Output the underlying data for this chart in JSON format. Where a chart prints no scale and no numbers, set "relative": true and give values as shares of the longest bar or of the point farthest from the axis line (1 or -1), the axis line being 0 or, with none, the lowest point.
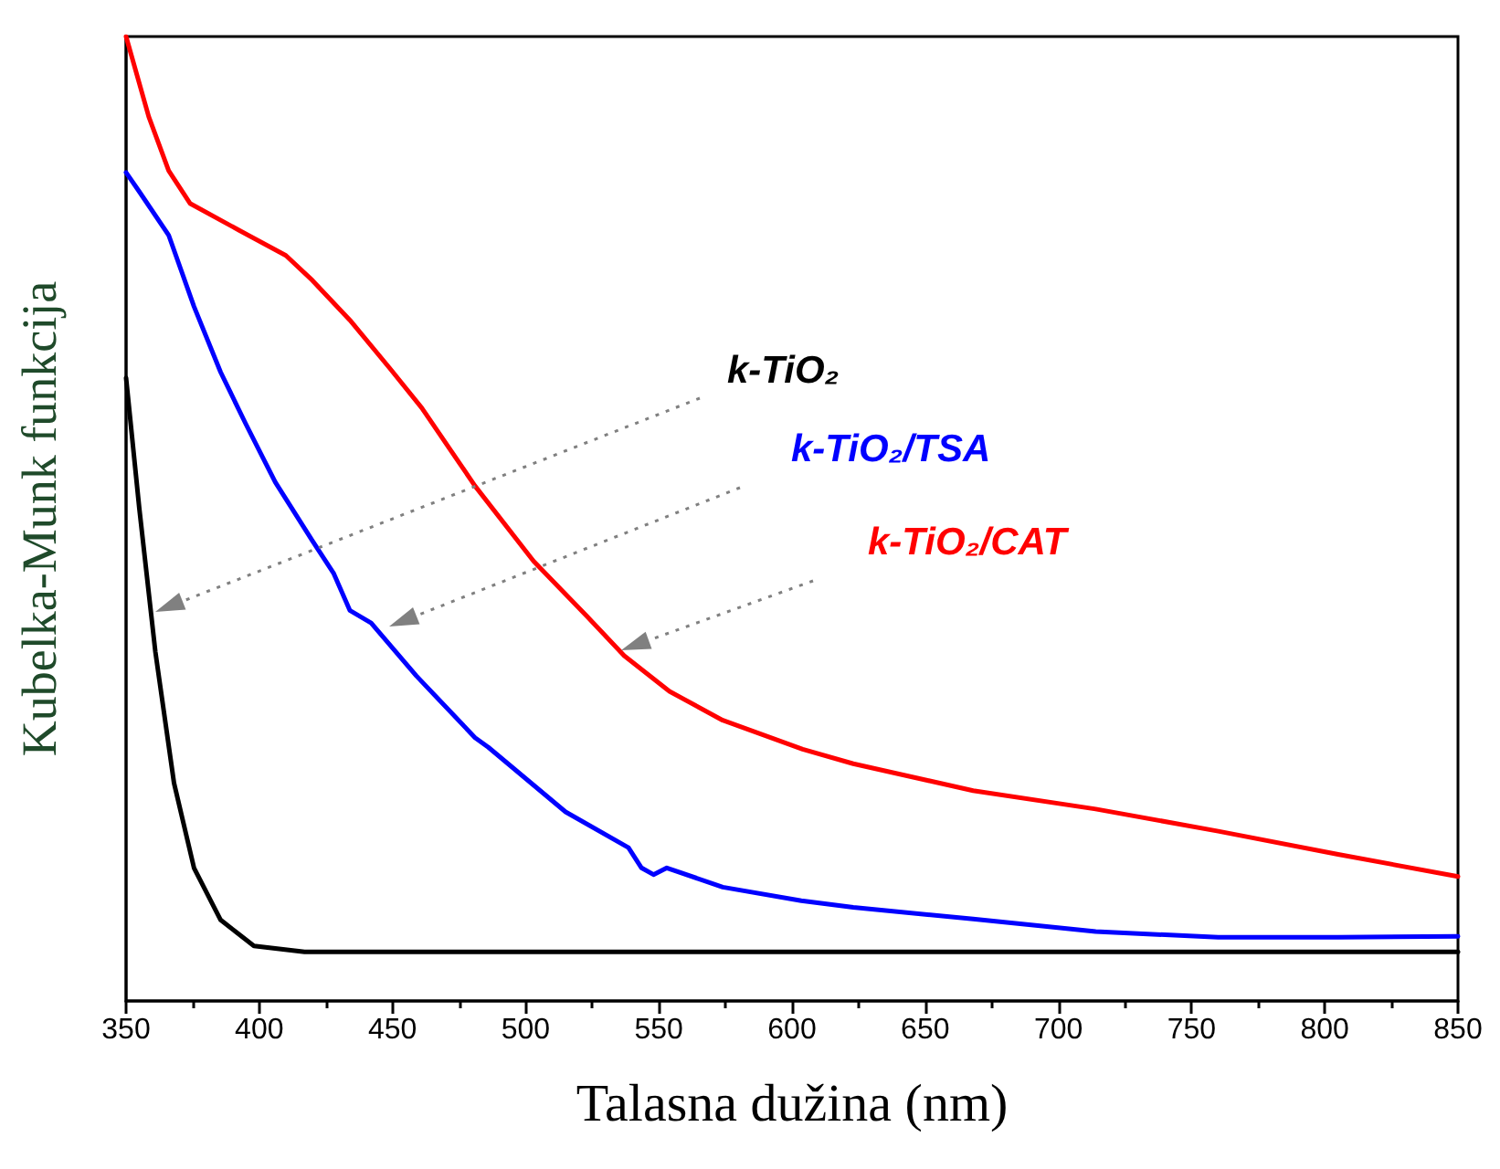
{
  "chart_data": {
    "type": "line",
    "xlabel": "Talasna dužina (nm)",
    "ylabel": "Kubelka-Munk funkcija",
    "relative": true,
    "xlim": [
      350,
      850
    ],
    "xticks": [
      350,
      400,
      450,
      500,
      550,
      600,
      650,
      700,
      750,
      800,
      850
    ],
    "series": [
      {
        "name": "k-TiO₂",
        "color": "#000000",
        "x": [
          350,
          355,
          361,
          368,
          375.5,
          385.5,
          398,
          417,
          500,
          600,
          700,
          850
        ],
        "values": [
          0.646,
          0.51,
          0.362,
          0.226,
          0.138,
          0.084,
          0.057,
          0.051,
          0.051,
          0.051,
          0.051,
          0.051
        ]
      },
      {
        "name": "k-TiO₂/TSA",
        "color": "#0000ff",
        "x": [
          350,
          355,
          366,
          375.5,
          385.5,
          395,
          406,
          420,
          428,
          434,
          442,
          459,
          481,
          486,
          515,
          538.6,
          543.5,
          548,
          553,
          574,
          603.5,
          623,
          668,
          714,
          760,
          805,
          850
        ],
        "values": [
          0.859,
          0.839,
          0.794,
          0.72,
          0.652,
          0.598,
          0.538,
          0.477,
          0.443,
          0.405,
          0.392,
          0.337,
          0.273,
          0.263,
          0.196,
          0.159,
          0.138,
          0.131,
          0.138,
          0.118,
          0.104,
          0.097,
          0.085,
          0.072,
          0.066,
          0.066,
          0.067
        ]
      },
      {
        "name": "k-TiO₂/CAT",
        "color": "#ff0000",
        "x": [
          350,
          358.5,
          366,
          374,
          392.5,
          410,
          420,
          434,
          449,
          461,
          481,
          503,
          523,
          537,
          554,
          574,
          604,
          623,
          668,
          714,
          760,
          805,
          850
        ],
        "values": [
          1,
          0.917,
          0.861,
          0.827,
          0.799,
          0.773,
          0.747,
          0.706,
          0.656,
          0.615,
          0.534,
          0.456,
          0.399,
          0.358,
          0.321,
          0.291,
          0.261,
          0.246,
          0.218,
          0.199,
          0.176,
          0.152,
          0.129
        ]
      }
    ]
  }
}
